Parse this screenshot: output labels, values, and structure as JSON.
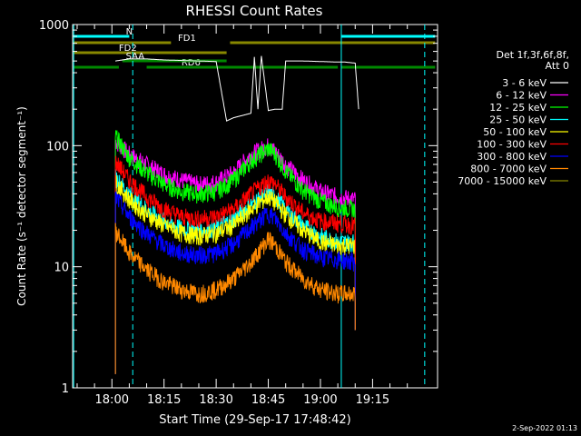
{
  "chart_data": {
    "type": "line",
    "title": "RHESSI Count Rates",
    "xlabel": "Start Time (29-Sep-17 17:48:42)",
    "ylabel": "Count Rate (s⁻¹ detector segment⁻¹)",
    "yscale": "log",
    "ylim": [
      1,
      1000
    ],
    "xlim": [
      "17:48:42",
      "19:33:42"
    ],
    "x_ticks": [
      "18:00",
      "18:15",
      "18:30",
      "18:45",
      "19:00",
      "19:15"
    ],
    "y_ticks": [
      "1",
      "10",
      "100",
      "1000"
    ],
    "legend_header": [
      "Det 1f,3f,6f,8f,",
      "Att 0"
    ],
    "legend_position": "right",
    "footer_date": "2-Sep-2022 01:13",
    "series": [
      {
        "name": "3 - 6 keV",
        "color": "#000000",
        "x": [
          "18:01",
          "18:05",
          "18:10",
          "18:15",
          "18:20",
          "18:25",
          "18:30",
          "18:33",
          "18:35",
          "18:40",
          "18:41",
          "18:42",
          "18:43",
          "18:45",
          "18:47",
          "18:49",
          "18:50",
          "18:55",
          "19:00",
          "19:05",
          "19:07",
          "19:10",
          "19:11"
        ],
        "y": [
          500,
          520,
          520,
          510,
          505,
          500,
          495,
          160,
          170,
          185,
          540,
          200,
          550,
          195,
          200,
          200,
          500,
          500,
          495,
          490,
          490,
          480,
          200
        ]
      },
      {
        "name": "6 - 12 keV",
        "color": "#ff00ff",
        "x": [
          "18:01",
          "18:05",
          "18:10",
          "18:15",
          "18:20",
          "18:25",
          "18:30",
          "18:35",
          "18:40",
          "18:45",
          "18:47",
          "18:50",
          "18:55",
          "19:00",
          "19:05",
          "19:10"
        ],
        "y": [
          110,
          85,
          70,
          58,
          52,
          48,
          50,
          60,
          85,
          100,
          90,
          70,
          52,
          42,
          38,
          36
        ]
      },
      {
        "name": "12 - 25 keV",
        "color": "#00ff00",
        "x": [
          "18:01",
          "18:05",
          "18:10",
          "18:15",
          "18:20",
          "18:25",
          "18:30",
          "18:35",
          "18:40",
          "18:45",
          "18:47",
          "18:50",
          "18:55",
          "19:00",
          "19:05",
          "19:10"
        ],
        "y": [
          120,
          80,
          60,
          48,
          42,
          40,
          42,
          52,
          75,
          95,
          85,
          62,
          43,
          35,
          31,
          30
        ]
      },
      {
        "name": "25 - 50 keV",
        "color": "#00ffff",
        "x": [
          "18:01",
          "18:05",
          "18:10",
          "18:15",
          "18:20",
          "18:25",
          "18:30",
          "18:35",
          "18:40",
          "18:45",
          "18:47",
          "18:50",
          "18:55",
          "19:00",
          "19:05",
          "19:10"
        ],
        "y": [
          55,
          40,
          30,
          24,
          21,
          20,
          21,
          25,
          33,
          42,
          38,
          30,
          22,
          18,
          16,
          16
        ]
      },
      {
        "name": "50 - 100 keV",
        "color": "#ffff00",
        "x": [
          "18:01",
          "18:05",
          "18:10",
          "18:15",
          "18:20",
          "18:25",
          "18:30",
          "18:35",
          "18:40",
          "18:45",
          "18:47",
          "18:50",
          "18:55",
          "19:00",
          "19:05",
          "19:10"
        ],
        "y": [
          50,
          36,
          27,
          22,
          19,
          18,
          19,
          22,
          30,
          38,
          34,
          27,
          20,
          16,
          15,
          15
        ]
      },
      {
        "name": "100 - 300 keV",
        "color": "#ff0000",
        "x": [
          "18:01",
          "18:05",
          "18:10",
          "18:15",
          "18:20",
          "18:25",
          "18:30",
          "18:35",
          "18:40",
          "18:45",
          "18:47",
          "18:50",
          "18:55",
          "19:00",
          "19:05",
          "19:10"
        ],
        "y": [
          75,
          52,
          38,
          30,
          26,
          25,
          26,
          30,
          40,
          52,
          48,
          38,
          28,
          24,
          23,
          22
        ]
      },
      {
        "name": "300 - 800 keV",
        "color": "#0000ff",
        "x": [
          "18:01",
          "18:05",
          "18:10",
          "18:15",
          "18:20",
          "18:25",
          "18:30",
          "18:35",
          "18:40",
          "18:45",
          "18:47",
          "18:50",
          "18:55",
          "19:00",
          "19:05",
          "19:10"
        ],
        "y": [
          38,
          26,
          19,
          15,
          13,
          12.5,
          13,
          15.5,
          21,
          28,
          25,
          19,
          14,
          12,
          11.5,
          11
        ]
      },
      {
        "name": "800 - 7000 keV",
        "color": "#ff8800",
        "x": [
          "18:01",
          "18:05",
          "18:10",
          "18:15",
          "18:20",
          "18:25",
          "18:30",
          "18:35",
          "18:40",
          "18:45",
          "18:47",
          "18:50",
          "18:55",
          "19:00",
          "19:05",
          "19:10"
        ],
        "y": [
          20,
          13,
          9.5,
          7.5,
          6.5,
          6,
          6.5,
          8,
          11,
          17,
          15,
          11,
          8,
          6.5,
          6,
          6
        ]
      },
      {
        "name": "7000 - 15000 keV",
        "color": "#888800",
        "x": [],
        "y": []
      }
    ],
    "flags": [
      {
        "label": "N",
        "color": "#00ffff",
        "segments": [
          [
            "17:49",
            "18:05"
          ],
          [
            "19:06",
            "19:33"
          ]
        ]
      },
      {
        "label": "FD1",
        "color": "#888800",
        "segments": [
          [
            "17:49",
            "18:17"
          ],
          [
            "18:34",
            "19:33"
          ]
        ]
      },
      {
        "label": "FD2",
        "color": "#888800",
        "segments": [
          [
            "17:49",
            "18:33"
          ]
        ]
      },
      {
        "label": "RD6",
        "color": "#008800",
        "segments": [
          [
            "17:49",
            "18:02"
          ],
          [
            "18:10",
            "19:05"
          ],
          [
            "19:06",
            "19:33"
          ]
        ]
      },
      {
        "label": "SAA",
        "color": "#008800",
        "segments": [
          [
            "18:03",
            "18:33"
          ]
        ]
      }
    ],
    "vlines": [
      {
        "time": "17:49",
        "color": "#00ffff",
        "style": "solid"
      },
      {
        "time": "18:06",
        "color": "#00ffff",
        "style": "dashed"
      },
      {
        "time": "19:06",
        "color": "#00ffff",
        "style": "solid"
      },
      {
        "time": "19:30",
        "color": "#00ffff",
        "style": "dashed"
      }
    ]
  }
}
